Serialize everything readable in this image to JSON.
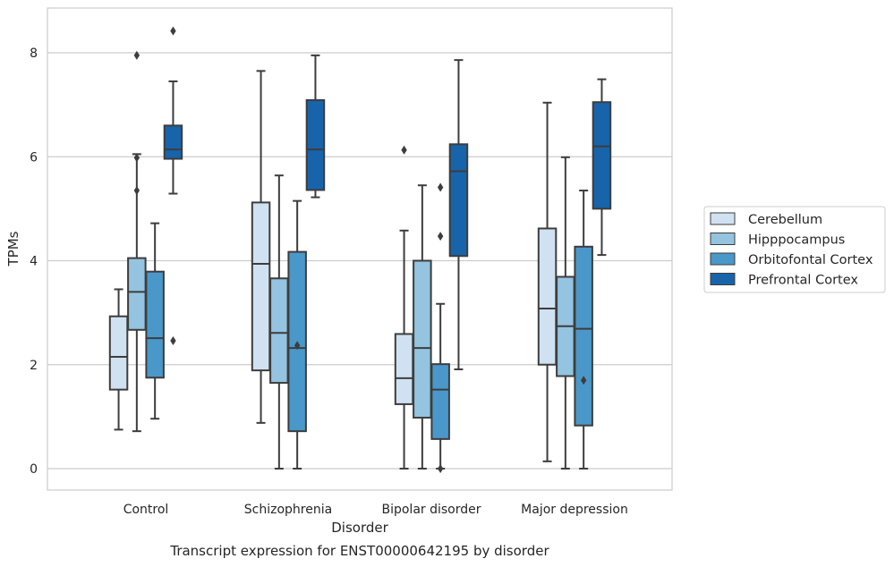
{
  "chart_data": {
    "type": "box",
    "title": "Transcript expression for ENST00000642195 by disorder",
    "xlabel": "Disorder",
    "ylabel": "TPMs",
    "ylim": [
      -0.4,
      8.85
    ],
    "yticks": [
      "0",
      "2",
      "4",
      "6",
      "8"
    ],
    "grid": "horizontal",
    "legend_position": "right",
    "categories": [
      "Control",
      "Schizophrenia",
      "Bipolar disorder",
      "Major depression"
    ],
    "series": [
      {
        "name": "Cerebellum",
        "color": "#d0e1f2",
        "boxes": [
          {
            "whislo": 0.75,
            "q1": 1.52,
            "med": 2.15,
            "q3": 2.93,
            "whishi": 3.45,
            "fliers": []
          },
          {
            "whislo": 0.88,
            "q1": 1.89,
            "med": 3.94,
            "q3": 5.12,
            "whishi": 7.65,
            "fliers": []
          },
          {
            "whislo": 0.0,
            "q1": 1.24,
            "med": 1.74,
            "q3": 2.59,
            "whishi": 4.58,
            "fliers": [
              6.13
            ]
          },
          {
            "whislo": 0.14,
            "q1": 2.0,
            "med": 3.08,
            "q3": 4.62,
            "whishi": 7.04,
            "fliers": []
          }
        ]
      },
      {
        "name": "Hipppocampus",
        "color": "#94c4df",
        "boxes": [
          {
            "whislo": 0.72,
            "q1": 2.67,
            "med": 3.4,
            "q3": 4.05,
            "whishi": 6.05,
            "fliers": [
              7.95,
              5.98,
              5.35
            ]
          },
          {
            "whislo": 0.0,
            "q1": 1.65,
            "med": 2.61,
            "q3": 3.66,
            "whishi": 5.64,
            "fliers": []
          },
          {
            "whislo": 0.0,
            "q1": 0.98,
            "med": 2.32,
            "q3": 4.0,
            "whishi": 5.45,
            "fliers": []
          },
          {
            "whislo": 0.0,
            "q1": 1.78,
            "med": 2.74,
            "q3": 3.69,
            "whishi": 5.99,
            "fliers": []
          }
        ]
      },
      {
        "name": "Orbitofontal Cortex",
        "color": "#4a98c9",
        "boxes": [
          {
            "whislo": 0.96,
            "q1": 1.75,
            "med": 2.51,
            "q3": 3.79,
            "whishi": 4.72,
            "fliers": []
          },
          {
            "whislo": 0.0,
            "q1": 0.72,
            "med": 2.32,
            "q3": 4.17,
            "whishi": 5.15,
            "fliers": [
              2.37
            ]
          },
          {
            "whislo": 0.0,
            "q1": 0.57,
            "med": 1.52,
            "q3": 2.01,
            "whishi": 3.17,
            "fliers": [
              5.41,
              4.47,
              0.0
            ]
          },
          {
            "whislo": 0.0,
            "q1": 0.83,
            "med": 2.69,
            "q3": 4.27,
            "whishi": 5.35,
            "fliers": [
              1.7
            ]
          }
        ]
      },
      {
        "name": "Prefrontal Cortex",
        "color": "#1764ab",
        "boxes": [
          {
            "whislo": 5.29,
            "q1": 5.96,
            "med": 6.14,
            "q3": 6.6,
            "whishi": 7.45,
            "fliers": [
              8.42,
              2.46
            ]
          },
          {
            "whislo": 5.22,
            "q1": 5.36,
            "med": 6.14,
            "q3": 7.09,
            "whishi": 7.95,
            "fliers": []
          },
          {
            "whislo": 1.91,
            "q1": 4.09,
            "med": 5.72,
            "q3": 6.24,
            "whishi": 7.86,
            "fliers": []
          },
          {
            "whislo": 4.11,
            "q1": 5.0,
            "med": 6.2,
            "q3": 7.05,
            "whishi": 7.49,
            "fliers": []
          }
        ]
      }
    ]
  }
}
